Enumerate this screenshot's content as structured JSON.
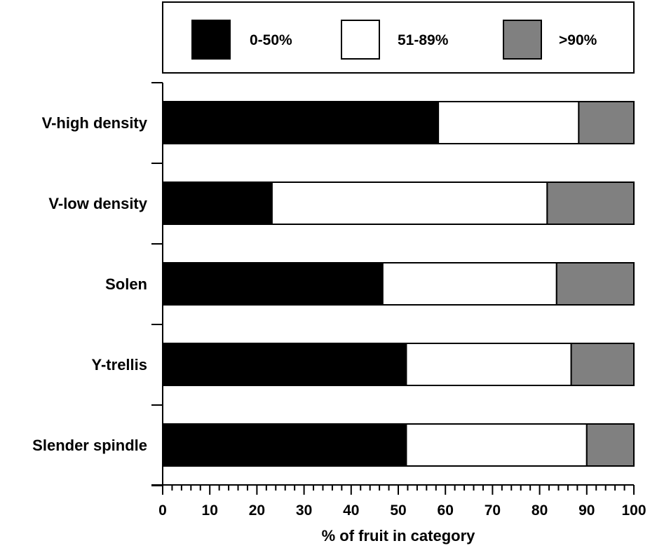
{
  "chart_data": {
    "type": "bar",
    "orientation": "horizontal",
    "stacked": true,
    "categories": [
      "V-high density",
      "V-low density",
      "Solen",
      "Y-trellis",
      "Slender spindle"
    ],
    "series": [
      {
        "name": "0-50%",
        "color": "#000000",
        "values": [
          58.5,
          23.2,
          46.7,
          51.7,
          51.7
        ]
      },
      {
        "name": "51-89%",
        "color": "#ffffff",
        "values": [
          29.8,
          58.4,
          36.9,
          35.0,
          38.3
        ]
      },
      {
        "name": ">90%",
        "color": "#808080",
        "values": [
          11.7,
          18.4,
          16.4,
          13.3,
          10.0
        ]
      }
    ],
    "xlabel": "% of fruit in category",
    "ylabel": "",
    "xlim": [
      0,
      100
    ],
    "xticks": [
      "0",
      "10",
      "20",
      "30",
      "40",
      "50",
      "60",
      "70",
      "80",
      "90",
      "100"
    ],
    "legend_position": "top",
    "grid": false
  }
}
